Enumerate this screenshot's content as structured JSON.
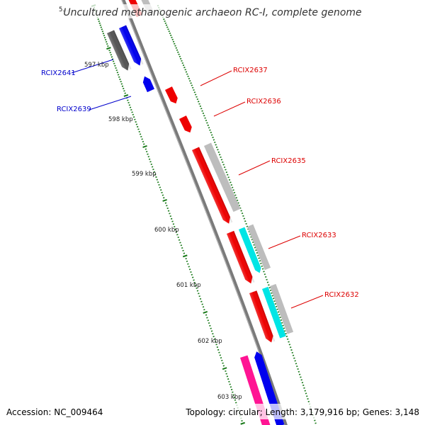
{
  "title": "Uncultured methanogenic archaeon RC-I, complete genome",
  "footer": {
    "accession": "Accession: NC_009464",
    "summary": "Topology: circular; Length: 3,179,916 bp; Genes: 3,148"
  },
  "colors": {
    "backbone": "#7a7a7a",
    "tick": "#1a7a1a",
    "label_forward": "#0000cc",
    "label_reverse": "#dd0000",
    "gene_red": "#ee0000",
    "gene_blue": "#0000ee",
    "gene_gray": "#bdbdbd",
    "gene_dark": "#555555",
    "gene_cyan": "#00e5e5",
    "gene_pink": "#ff1493"
  },
  "ticks": [
    "5…",
    "597 kbp",
    "598 kbp",
    "599 kbp",
    "600 kbp",
    "601 kbp",
    "602 kbp",
    "603 kbp"
  ],
  "gene_labels": [
    {
      "text": "RCIX2641",
      "strand": "forward"
    },
    {
      "text": "RCIX2639",
      "strand": "forward"
    },
    {
      "text": "RCIX2637",
      "strand": "reverse"
    },
    {
      "text": "RCIX2636",
      "strand": "reverse"
    },
    {
      "text": "RCIX2635",
      "strand": "reverse"
    },
    {
      "text": "RCIX2633",
      "strand": "reverse"
    },
    {
      "text": "RCIX2632",
      "strand": "reverse"
    }
  ]
}
